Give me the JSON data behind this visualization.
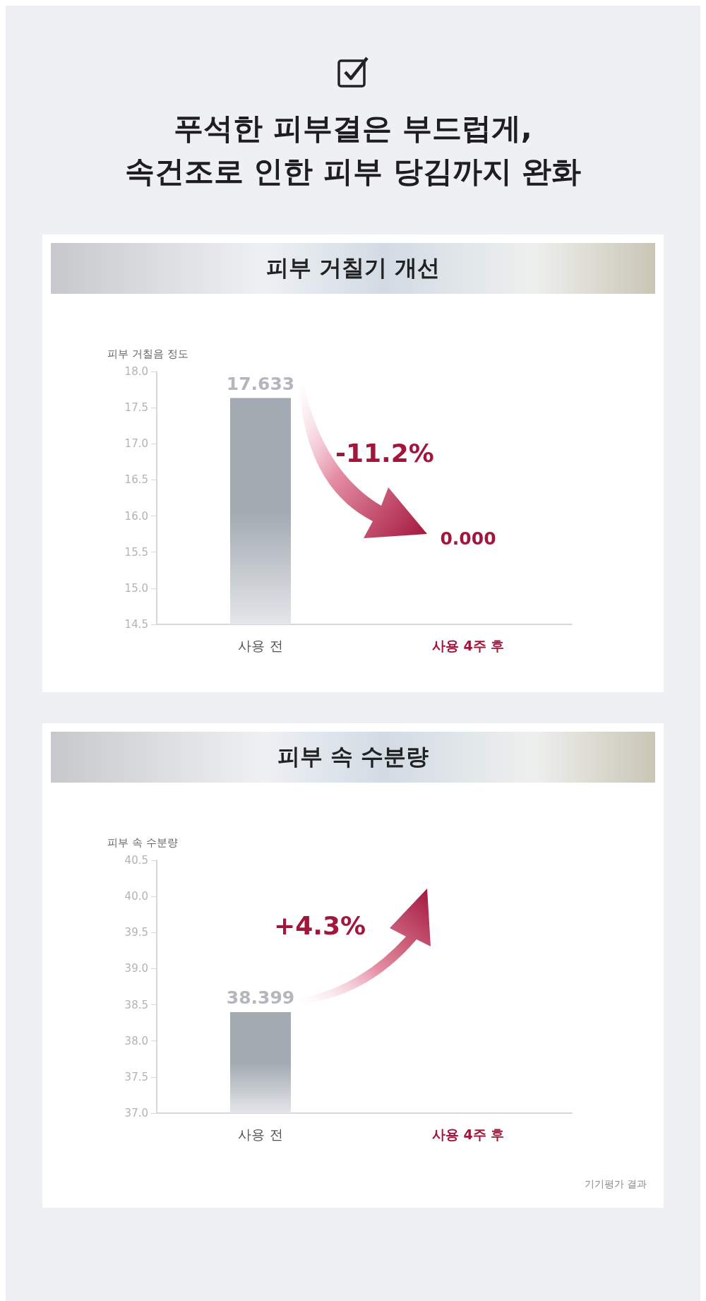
{
  "chart_data": [
    {
      "type": "bar",
      "title": "푸석한 피부결은 부드럽게,\n속건조로 인한 피부 당김까지 완화",
      "subtitle": "피부 거칠기 개선",
      "ylabel": "피부 거칠음 정도",
      "categories": [
        "사용 전",
        "사용 4주 후"
      ],
      "values": [
        17.633,
        null
      ],
      "value_labels": [
        "17.633",
        "0.000"
      ],
      "color": "#a3aab2",
      "ylim": [
        14.5,
        18
      ],
      "yticks": [
        14.5,
        {
          "value": 15,
          "label": "15.0"
        },
        15.5,
        {
          "value": 16,
          "label": "16.0"
        },
        16.5,
        {
          "value": 17,
          "label": "17.0"
        },
        17.5,
        {
          "value": 18,
          "label": "18.0"
        }
      ],
      "annotations": [
        "-11.2%"
      ]
    },
    {
      "type": "bar",
      "title": "피부 속 수분량",
      "ylabel": "피부 속 수분량",
      "categories": [
        "사용 전",
        "사용 4주 후"
      ],
      "values": [
        38.399,
        null
      ],
      "value_labels": [
        "38.399",
        null
      ],
      "color": "#a3aab2",
      "ylim": [
        37,
        40.5
      ],
      "yticks": [
        {
          "value": 37,
          "label": "37.0"
        },
        37.5,
        {
          "value": 38,
          "label": "38.0"
        },
        38.5,
        {
          "value": 39,
          "label": "39.0"
        },
        39.5,
        {
          "value": 40,
          "label": "40.0"
        },
        40.5
      ],
      "annotations": [
        "+4.3%",
        "기기평가 결과"
      ]
    }
  ]
}
